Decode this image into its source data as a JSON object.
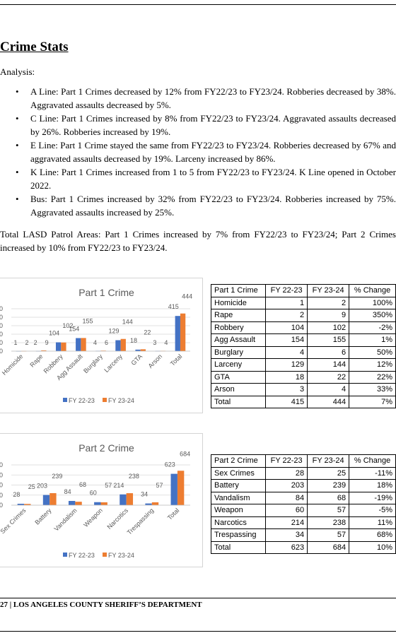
{
  "document": {
    "title": "Crime Stats",
    "analysis_label": "Analysis:",
    "bullets": [
      "A Line: Part 1 Crimes decreased by 12% from FY22/23 to FY23/24. Robberies decreased by 38%. Aggravated assaults decreased by 5%.",
      "C Line: Part 1 Crimes increased by 8% from FY22/23 to FY23/24. Aggravated assaults decreased by 26%. Robberies increased by 19%.",
      "E Line: Part 1 Crime stayed the same from FY22/23 to FY23/24. Robberies decreased by 67% and aggravated assaults decreased by 19%. Larceny increased by 86%.",
      "K Line: Part 1 Crimes increased from 1 to 5 from FY22/23 to FY23/24. K Line opened in October 2022.",
      "Bus: Part 1 Crimes increased by 32% from FY22/23 to FY23/24. Robberies increased by 75%. Aggravated assaults increased by 25%."
    ],
    "summary": "Total LASD Patrol Areas: Part 1 Crimes increased by 7% from FY22/23 to FY23/24; Part 2 Crimes increased by 10% from FY22/23 to FY23/24.",
    "footer": "27 | LOS ANGELES COUNTY SHERIFF’S DEPARTMENT"
  },
  "colors": {
    "fy2223": "#4472C4",
    "fy2324": "#ED7D31",
    "grid": "#d9d9d9",
    "text": "#595959"
  },
  "chart_data": [
    {
      "type": "bar",
      "title": "Part 1 Crime",
      "categories": [
        "Homicide",
        "Rape",
        "Robbery",
        "Agg Assault",
        "Burglary",
        "Larceny",
        "GTA",
        "Arson",
        "Total"
      ],
      "series": [
        {
          "name": "FY 22-23",
          "values": [
            1,
            2,
            104,
            154,
            4,
            129,
            18,
            3,
            415
          ]
        },
        {
          "name": "FY 23-24",
          "values": [
            2,
            9,
            102,
            155,
            6,
            144,
            22,
            4,
            444
          ]
        }
      ],
      "y_tick_labels": [
        "00",
        "00",
        "00",
        "00",
        "00",
        "0"
      ],
      "ylim": [
        0,
        500
      ],
      "grid": true,
      "legend": "bottom"
    },
    {
      "type": "bar",
      "title": "Part 2 Crime",
      "categories": [
        "Sex Crimes",
        "Battery",
        "Vandalism",
        "Weapon",
        "Narcotics",
        "Trespassing",
        "Total"
      ],
      "series": [
        {
          "name": "FY 22-23",
          "values": [
            28,
            203,
            84,
            60,
            214,
            34,
            623
          ]
        },
        {
          "name": "FY 23-24",
          "values": [
            25,
            239,
            68,
            57,
            238,
            57,
            684
          ]
        }
      ],
      "y_tick_labels": [
        "00",
        "00",
        "00",
        "00",
        "0"
      ],
      "ylim": [
        0,
        800
      ],
      "grid": true,
      "legend": "bottom"
    }
  ],
  "tables": [
    {
      "headers": [
        "Part 1 Crime",
        "FY 22-23",
        "FY 23-24",
        "% Change"
      ],
      "rows": [
        [
          "Homicide",
          "1",
          "2",
          "100%"
        ],
        [
          "Rape",
          "2",
          "9",
          "350%"
        ],
        [
          "Robbery",
          "104",
          "102",
          "-2%"
        ],
        [
          "Agg Assault",
          "154",
          "155",
          "1%"
        ],
        [
          "Burglary",
          "4",
          "6",
          "50%"
        ],
        [
          "Larceny",
          "129",
          "144",
          "12%"
        ],
        [
          "GTA",
          "18",
          "22",
          "22%"
        ],
        [
          "Arson",
          "3",
          "4",
          "33%"
        ],
        [
          "Total",
          "415",
          "444",
          "7%"
        ]
      ]
    },
    {
      "headers": [
        "Part 2 Crime",
        "FY 22-23",
        "FY 23-24",
        "% Change"
      ],
      "rows": [
        [
          "Sex Crimes",
          "28",
          "25",
          "-11%"
        ],
        [
          "Battery",
          "203",
          "239",
          "18%"
        ],
        [
          "Vandalism",
          "84",
          "68",
          "-19%"
        ],
        [
          "Weapon",
          "60",
          "57",
          "-5%"
        ],
        [
          "Narcotics",
          "214",
          "238",
          "11%"
        ],
        [
          "Trespassing",
          "34",
          "57",
          "68%"
        ],
        [
          "Total",
          "623",
          "684",
          "10%"
        ]
      ]
    }
  ]
}
